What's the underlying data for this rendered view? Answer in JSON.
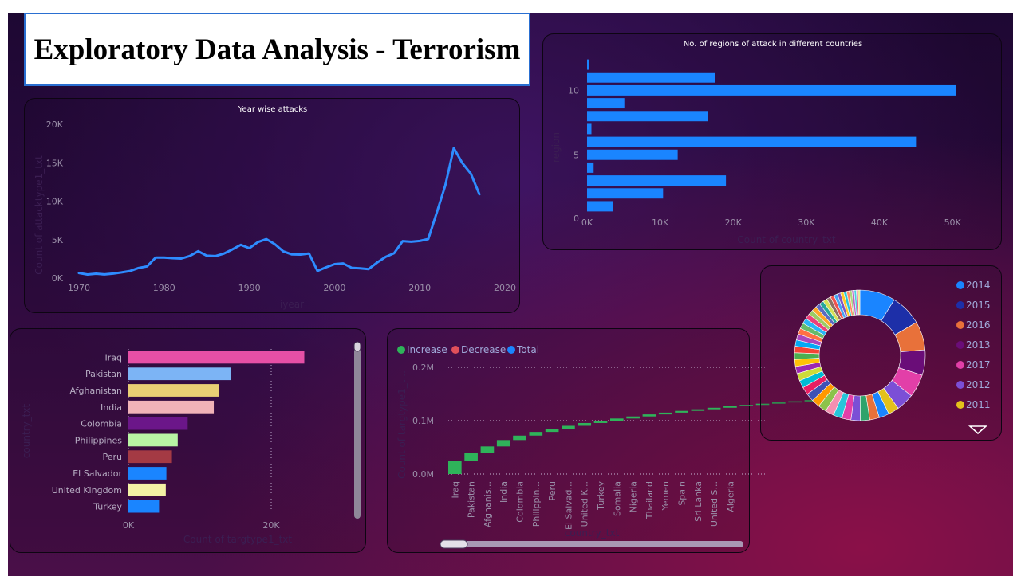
{
  "dashboard": {
    "title": "Exploratory Data Analysis - Terrorism"
  },
  "year_chart": {
    "title": "Year wise attacks",
    "xlabel": "iyear",
    "ylabel": "Count of attacktype1_txt",
    "yticks": [
      "0K",
      "5K",
      "10K",
      "15K",
      "20K"
    ],
    "xticks": [
      "1970",
      "1980",
      "1990",
      "2000",
      "2010",
      "2020"
    ]
  },
  "region_chart": {
    "title": "No. of regions of attack in different countries",
    "xlabel": "Count of country_txt",
    "ylabel": "region",
    "xticks": [
      "0K",
      "10K",
      "20K",
      "30K",
      "40K",
      "50K"
    ],
    "yticks": [
      "0",
      "5",
      "10"
    ]
  },
  "target_chart": {
    "xlabel": "Count of targtype1_txt",
    "ylabel": "country_txt",
    "xticks": [
      "0K",
      "20K"
    ]
  },
  "waterfall_chart": {
    "xlabel": "country_txt",
    "ylabel": "Count of targtype1_t...",
    "yticks": [
      "0.0M",
      "0.1M",
      "0.2M"
    ],
    "legend": [
      "Increase",
      "Decrease",
      "Total"
    ],
    "categories": [
      "Iraq",
      "Pakistan",
      "Afghanis...",
      "India",
      "Colombia",
      "Philippin...",
      "Peru",
      "El Salvad...",
      "United K...",
      "Turkey",
      "Somalia",
      "Nigeria",
      "Thailand",
      "Yemen",
      "Spain",
      "Sri Lanka",
      "United S...",
      "Algeria"
    ]
  },
  "pie_chart": {
    "legend": [
      "2014",
      "2015",
      "2016",
      "2013",
      "2017",
      "2012",
      "2011"
    ]
  },
  "chart_data": [
    {
      "type": "line",
      "title": "Year wise attacks",
      "xlabel": "iyear",
      "ylabel": "Count of attacktype1_txt",
      "ylim": [
        0,
        20000
      ],
      "xlim": [
        1970,
        2020
      ],
      "x": [
        1970,
        1971,
        1972,
        1973,
        1974,
        1975,
        1976,
        1977,
        1978,
        1979,
        1980,
        1981,
        1982,
        1983,
        1984,
        1985,
        1986,
        1987,
        1988,
        1989,
        1990,
        1991,
        1992,
        1993,
        1994,
        1995,
        1996,
        1997,
        1998,
        1999,
        2000,
        2001,
        2002,
        2003,
        2004,
        2005,
        2006,
        2007,
        2008,
        2009,
        2010,
        2011,
        2012,
        2013,
        2014,
        2015,
        2016,
        2017
      ],
      "y": [
        651,
        471,
        568,
        473,
        581,
        740,
        923,
        1319,
        1526,
        2662,
        2662,
        2586,
        2544,
        2870,
        3495,
        2915,
        2860,
        3183,
        3721,
        4324,
        3887,
        4683,
        5071,
        4400,
        3456,
        3081,
        3058,
        3197,
        934,
        1395,
        1814,
        1906,
        1333,
        1278,
        1166,
        2017,
        2758,
        3242,
        4805,
        4721,
        4826,
        5076,
        8522,
        12036,
        16903,
        14965,
        13587,
        10900
      ],
      "color": "#2e8cff",
      "grid": false
    },
    {
      "type": "bar",
      "orientation": "horizontal",
      "title": "No. of regions of attack in different countries",
      "xlabel": "Count of country_txt",
      "ylabel": "region",
      "categories": [
        12,
        11,
        10,
        9,
        8,
        7,
        6,
        5,
        4,
        3,
        2,
        1
      ],
      "values": [
        300,
        17500,
        50500,
        5100,
        16500,
        600,
        45000,
        12400,
        900,
        19000,
        10400,
        3500
      ],
      "xlim": [
        0,
        55000
      ],
      "color": "#1a85ff"
    },
    {
      "type": "bar",
      "orientation": "horizontal",
      "xlabel": "Count of targtype1_txt",
      "ylabel": "country_txt",
      "categories": [
        "Iraq",
        "Pakistan",
        "Afghanistan",
        "India",
        "Colombia",
        "Philippines",
        "Peru",
        "El Salvador",
        "United Kingdom",
        "Turkey"
      ],
      "values": [
        24636,
        14368,
        12731,
        11960,
        8306,
        6908,
        6096,
        5320,
        5235,
        4292
      ],
      "colors": [
        "#e64fa6",
        "#7cb4f5",
        "#e9cf74",
        "#f1b3b8",
        "#6b1689",
        "#b9f5a4",
        "#a43a44",
        "#1a85ff",
        "#f3f2a4",
        "#1a85ff"
      ],
      "xlim": [
        0,
        30000
      ]
    },
    {
      "type": "bar",
      "subtype": "waterfall",
      "xlabel": "country_txt",
      "ylabel": "Count of targtype1_t...",
      "categories": [
        "Iraq",
        "Pakistan",
        "Afghanis...",
        "India",
        "Colombia",
        "Philippin...",
        "Peru",
        "El Salvad...",
        "United K...",
        "Turkey",
        "Somalia",
        "Nigeria",
        "Thailand",
        "Yemen",
        "Spain",
        "Sri Lanka",
        "United S...",
        "Algeria"
      ],
      "values": [
        24636,
        14368,
        12731,
        11960,
        8306,
        6908,
        6096,
        5320,
        5235,
        4292,
        4142,
        3907,
        3849,
        3347,
        3249,
        3022,
        2836,
        2743
      ],
      "ylim": [
        0,
        200000
      ],
      "legend": [
        "Increase",
        "Decrease",
        "Total"
      ],
      "colors": {
        "increase": "#2fb35a",
        "decrease": "#e0505a",
        "total": "#1a85ff"
      }
    },
    {
      "type": "pie",
      "subtype": "donut",
      "labels": [
        "2014",
        "2015",
        "2016",
        "2013",
        "2017",
        "2012",
        "2011"
      ],
      "values": [
        16903,
        14965,
        13587,
        12036,
        10900,
        8522,
        5076
      ],
      "colors": [
        "#1a85ff",
        "#1d2fa8",
        "#e8713a",
        "#6a0d78",
        "#e23fa8",
        "#7b4fd6",
        "#e3c11b"
      ],
      "other_slices": 40
    }
  ]
}
